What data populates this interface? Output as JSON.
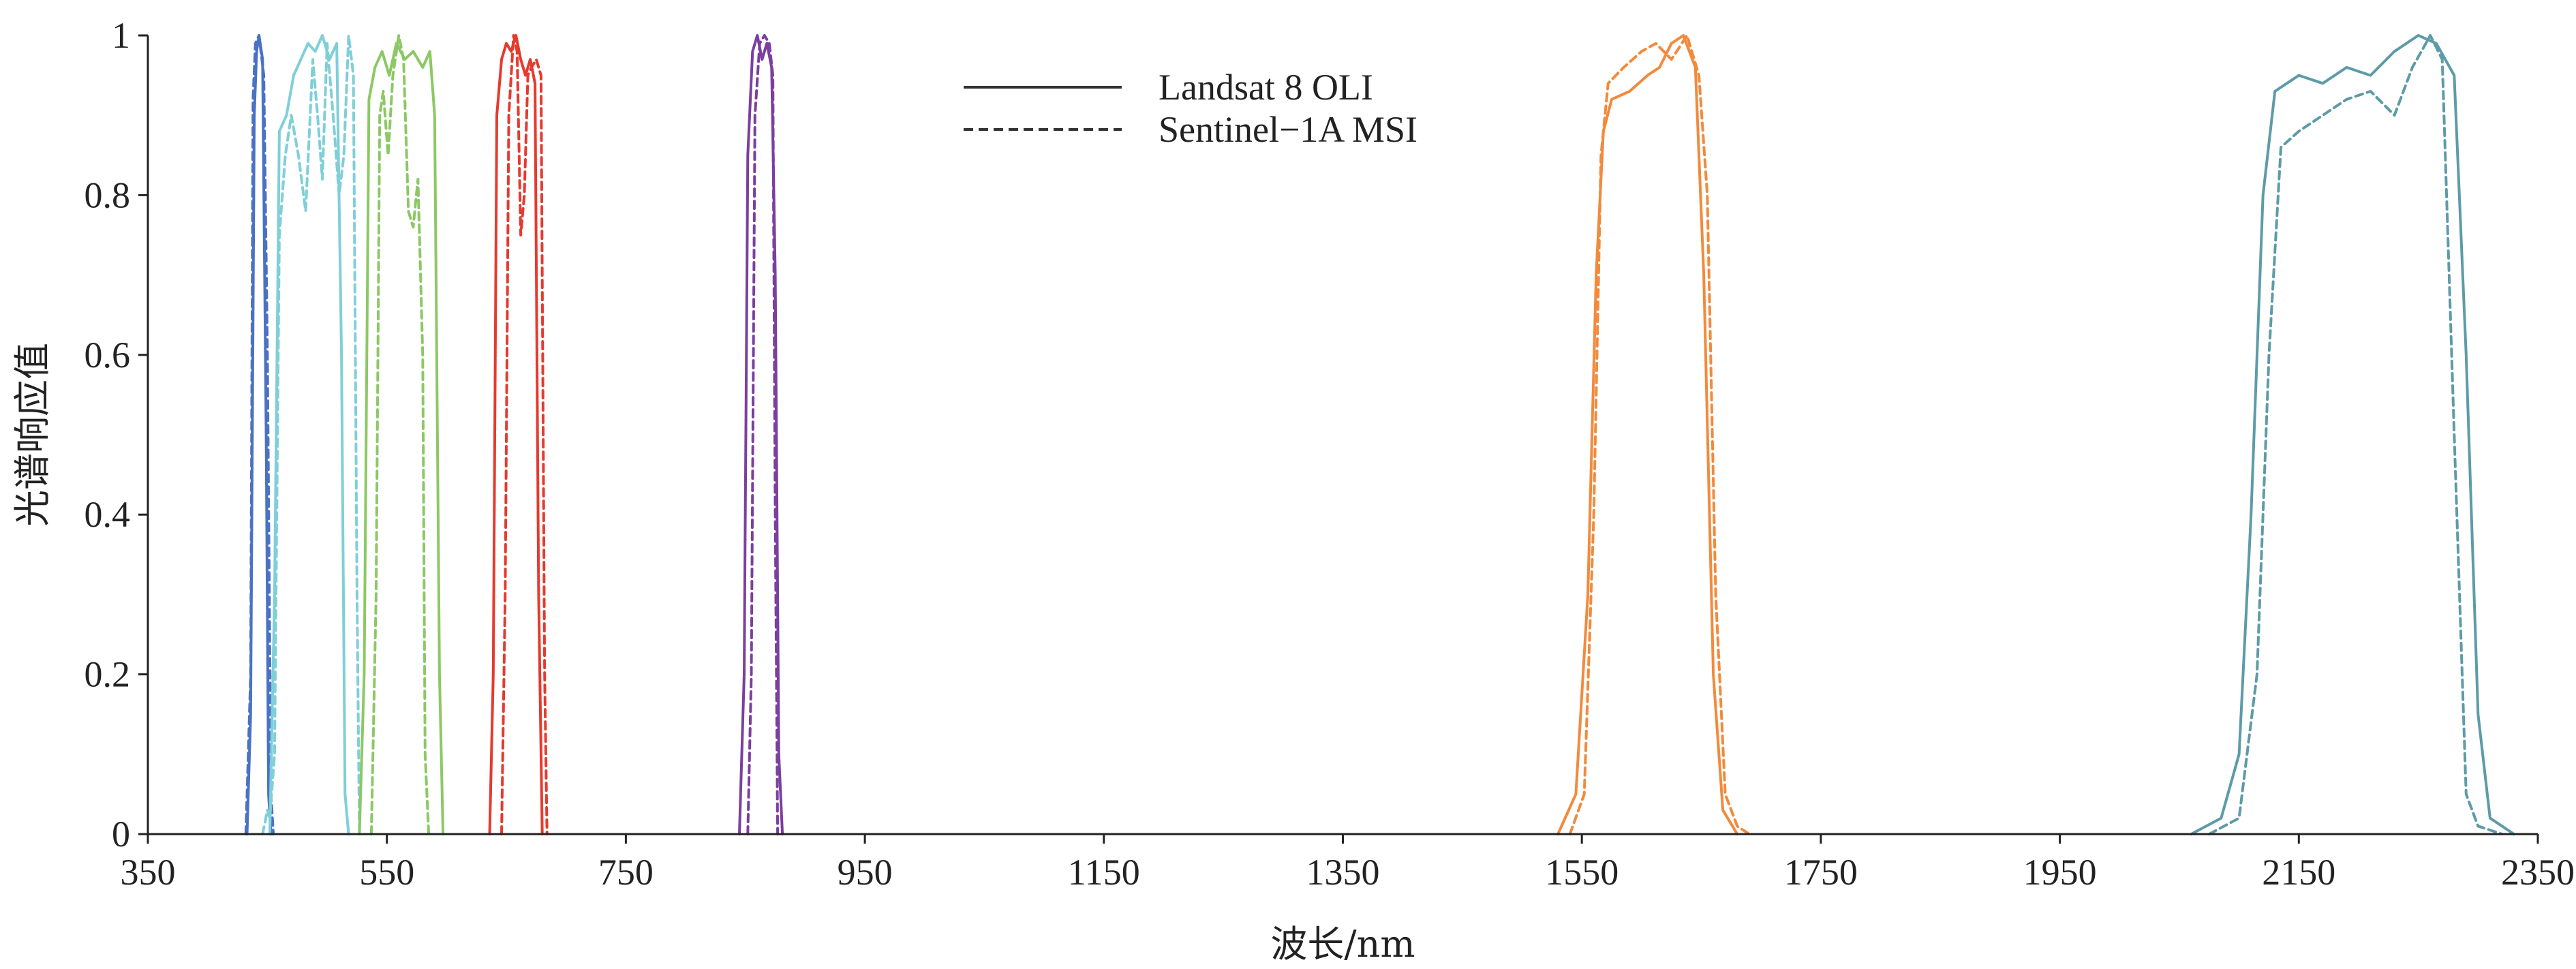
{
  "chart_data": {
    "type": "line",
    "title": "",
    "xlabel": "波长/nm",
    "ylabel": "光谱响应值",
    "xlim": [
      350,
      2350
    ],
    "ylim": [
      0,
      1
    ],
    "x_ticks": [
      350,
      550,
      750,
      950,
      1150,
      1350,
      1550,
      1750,
      1950,
      2150,
      2350
    ],
    "y_ticks": [
      0,
      0.2,
      0.4,
      0.6,
      0.8,
      1
    ],
    "y_tick_labels": [
      "0",
      "0.2",
      "0.4",
      "0.6",
      "0.8",
      "1"
    ],
    "grid": false,
    "legend_position": "top-center",
    "legend": [
      {
        "label": "Landsat 8 OLI",
        "style": "solid"
      },
      {
        "label": "Sentinel−1A MSI",
        "style": "dashed"
      }
    ],
    "series": [
      {
        "sensor": "Landsat 8 OLI",
        "style": "solid",
        "color": "#4a72c4",
        "x": [
          433,
          436,
          439,
          441,
          443,
          446,
          449,
          451,
          453
        ],
        "y": [
          0,
          0.15,
          0.9,
          0.98,
          1,
          0.97,
          0.5,
          0.05,
          0
        ]
      },
      {
        "sensor": "Sentinel−1A MSI",
        "style": "dashed",
        "color": "#4a72c4",
        "x": [
          432,
          436,
          438,
          440,
          443,
          447,
          450,
          453,
          455
        ],
        "y": [
          0,
          0.2,
          0.92,
          0.99,
          1,
          0.95,
          0.6,
          0.05,
          0
        ]
      },
      {
        "sensor": "Landsat 8 OLI",
        "style": "solid",
        "color": "#7fcfd8",
        "x": [
          452,
          456,
          460,
          466,
          472,
          478,
          484,
          490,
          496,
          502,
          508,
          512,
          515,
          518
        ],
        "y": [
          0,
          0.3,
          0.88,
          0.9,
          0.95,
          0.97,
          0.99,
          0.98,
          1,
          0.97,
          0.99,
          0.6,
          0.05,
          0
        ]
      },
      {
        "sensor": "Sentinel−1A MSI",
        "style": "dashed",
        "color": "#7fcfd8",
        "x": [
          446,
          450,
          452,
          456,
          460,
          465,
          470,
          476,
          482,
          488,
          492,
          496,
          500,
          505,
          510,
          514,
          518,
          522,
          525,
          527
        ],
        "y": [
          0,
          0.03,
          0.02,
          0.1,
          0.75,
          0.85,
          0.9,
          0.85,
          0.78,
          0.97,
          0.9,
          0.82,
          0.99,
          0.9,
          0.8,
          0.85,
          1,
          0.95,
          0.3,
          0
        ]
      },
      {
        "sensor": "Landsat 8 OLI",
        "style": "solid",
        "color": "#8cc864",
        "x": [
          527,
          531,
          535,
          540,
          546,
          552,
          558,
          565,
          572,
          580,
          586,
          590,
          594,
          597
        ],
        "y": [
          0,
          0.2,
          0.92,
          0.96,
          0.98,
          0.95,
          0.99,
          0.97,
          0.98,
          0.96,
          0.98,
          0.9,
          0.2,
          0
        ]
      },
      {
        "sensor": "Sentinel−1A MSI",
        "style": "dashed",
        "color": "#8cc864",
        "x": [
          537,
          541,
          544,
          547,
          551,
          555,
          560,
          564,
          568,
          572,
          576,
          580,
          582,
          585
        ],
        "y": [
          0,
          0.3,
          0.9,
          0.93,
          0.85,
          0.95,
          1,
          0.97,
          0.78,
          0.76,
          0.82,
          0.6,
          0.1,
          0
        ]
      },
      {
        "sensor": "Landsat 8 OLI",
        "style": "solid",
        "color": "#e53a2e",
        "x": [
          636,
          639,
          642,
          646,
          650,
          654,
          658,
          662,
          666,
          670,
          674,
          677,
          680
        ],
        "y": [
          0,
          0.2,
          0.9,
          0.97,
          0.99,
          0.98,
          1,
          0.97,
          0.95,
          0.97,
          0.94,
          0.3,
          0
        ]
      },
      {
        "sensor": "Sentinel−1A MSI",
        "style": "dashed",
        "color": "#e53a2e",
        "x": [
          646,
          649,
          652,
          656,
          659,
          662,
          665,
          668,
          671,
          675,
          679,
          682,
          684
        ],
        "y": [
          0,
          0.3,
          0.9,
          1,
          0.98,
          0.75,
          0.8,
          0.95,
          0.96,
          0.97,
          0.95,
          0.2,
          0
        ]
      },
      {
        "sensor": "Landsat 8 OLI",
        "style": "solid",
        "color": "#7b3fa0",
        "x": [
          845,
          849,
          852,
          856,
          860,
          864,
          868,
          872,
          875,
          878,
          881
        ],
        "y": [
          0,
          0.2,
          0.85,
          0.98,
          1,
          0.97,
          0.99,
          0.96,
          0.7,
          0.1,
          0
        ]
      },
      {
        "sensor": "Sentinel−1A MSI",
        "style": "dashed",
        "color": "#7b3fa0",
        "x": [
          852,
          855,
          858,
          862,
          866,
          870,
          873,
          875,
          877
        ],
        "y": [
          0,
          0.2,
          0.9,
          0.99,
          1,
          0.99,
          0.95,
          0.4,
          0
        ]
      },
      {
        "sensor": "Landsat 8 OLI",
        "style": "solid",
        "color": "#f28a3c",
        "x": [
          1530,
          1545,
          1555,
          1562,
          1568,
          1575,
          1590,
          1605,
          1615,
          1625,
          1635,
          1645,
          1652,
          1660,
          1668,
          1680
        ],
        "y": [
          0,
          0.05,
          0.3,
          0.7,
          0.88,
          0.92,
          0.93,
          0.95,
          0.96,
          0.99,
          1,
          0.96,
          0.7,
          0.2,
          0.03,
          0
        ]
      },
      {
        "sensor": "Sentinel−1A MSI",
        "style": "dashed",
        "color": "#f28a3c",
        "x": [
          1540,
          1552,
          1560,
          1566,
          1572,
          1585,
          1600,
          1612,
          1625,
          1638,
          1648,
          1655,
          1662,
          1670,
          1680,
          1690
        ],
        "y": [
          0,
          0.05,
          0.4,
          0.85,
          0.94,
          0.96,
          0.98,
          0.99,
          0.97,
          1,
          0.95,
          0.8,
          0.3,
          0.05,
          0.01,
          0
        ]
      },
      {
        "sensor": "Landsat 8 OLI",
        "style": "solid",
        "color": "#5d9ba8",
        "x": [
          2060,
          2085,
          2100,
          2110,
          2120,
          2130,
          2150,
          2170,
          2190,
          2210,
          2230,
          2250,
          2265,
          2280,
          2290,
          2300,
          2310,
          2330
        ],
        "y": [
          0,
          0.02,
          0.1,
          0.4,
          0.8,
          0.93,
          0.95,
          0.94,
          0.96,
          0.95,
          0.98,
          1,
          0.99,
          0.95,
          0.6,
          0.15,
          0.02,
          0
        ]
      },
      {
        "sensor": "Sentinel−1A MSI",
        "style": "dashed",
        "color": "#5d9ba8",
        "x": [
          2075,
          2100,
          2115,
          2125,
          2135,
          2150,
          2170,
          2190,
          2210,
          2230,
          2245,
          2260,
          2270,
          2280,
          2290,
          2300,
          2320
        ],
        "y": [
          0,
          0.02,
          0.2,
          0.6,
          0.86,
          0.88,
          0.9,
          0.92,
          0.93,
          0.9,
          0.96,
          1,
          0.97,
          0.5,
          0.05,
          0.01,
          0
        ]
      }
    ]
  }
}
